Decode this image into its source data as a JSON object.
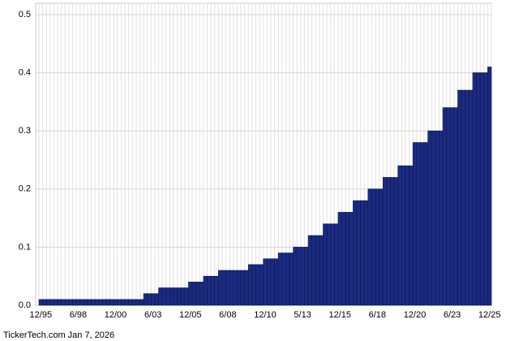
{
  "chart_data": {
    "type": "bar",
    "categories": [
      "12/95",
      null,
      null,
      null,
      null,
      null,
      null,
      null,
      null,
      null,
      "6/98",
      null,
      null,
      null,
      null,
      null,
      null,
      null,
      null,
      null,
      "12/00",
      null,
      null,
      null,
      null,
      null,
      null,
      null,
      null,
      null,
      "6/03",
      null,
      null,
      null,
      null,
      null,
      null,
      null,
      null,
      null,
      "12/05",
      null,
      null,
      null,
      null,
      null,
      null,
      null,
      null,
      null,
      "6/08",
      null,
      null,
      null,
      null,
      null,
      null,
      null,
      null,
      null,
      "12/10",
      null,
      null,
      null,
      null,
      null,
      null,
      null,
      null,
      null,
      "5/13",
      null,
      null,
      null,
      null,
      null,
      null,
      null,
      null,
      null,
      "12/15",
      null,
      null,
      null,
      null,
      null,
      null,
      null,
      null,
      null,
      "6/18",
      null,
      null,
      null,
      null,
      null,
      null,
      null,
      null,
      null,
      "12/20",
      null,
      null,
      null,
      null,
      null,
      null,
      null,
      null,
      null,
      "6/23",
      null,
      null,
      null,
      null,
      null,
      null,
      null,
      null,
      null,
      "12/25"
    ],
    "values": [
      0.01,
      0.01,
      0.01,
      0.01,
      0.01,
      0.01,
      0.01,
      0.01,
      0.01,
      0.01,
      0.01,
      0.01,
      0.01,
      0.01,
      0.01,
      0.01,
      0.01,
      0.01,
      0.01,
      0.01,
      0.01,
      0.01,
      0.01,
      0.01,
      0.01,
      0.01,
      0.01,
      0.01,
      0.02,
      0.02,
      0.02,
      0.02,
      0.03,
      0.03,
      0.03,
      0.03,
      0.03,
      0.03,
      0.03,
      0.03,
      0.04,
      0.04,
      0.04,
      0.04,
      0.05,
      0.05,
      0.05,
      0.05,
      0.06,
      0.06,
      0.06,
      0.06,
      0.06,
      0.06,
      0.06,
      0.06,
      0.07,
      0.07,
      0.07,
      0.07,
      0.08,
      0.08,
      0.08,
      0.08,
      0.09,
      0.09,
      0.09,
      0.09,
      0.1,
      0.1,
      0.1,
      0.1,
      0.12,
      0.12,
      0.12,
      0.12,
      0.14,
      0.14,
      0.14,
      0.14,
      0.16,
      0.16,
      0.16,
      0.16,
      0.18,
      0.18,
      0.18,
      0.18,
      0.2,
      0.2,
      0.2,
      0.2,
      0.22,
      0.22,
      0.22,
      0.22,
      0.24,
      0.24,
      0.24,
      0.24,
      0.28,
      0.28,
      0.28,
      0.28,
      0.3,
      0.3,
      0.3,
      0.3,
      0.34,
      0.34,
      0.34,
      0.34,
      0.37,
      0.37,
      0.37,
      0.37,
      0.4,
      0.4,
      0.4,
      0.4,
      0.41
    ],
    "color": "#1c2b80",
    "ylim": [
      0,
      0.5
    ],
    "yticks": [
      {
        "value": 0,
        "label": "0.0"
      },
      0.1,
      0.2,
      0.3,
      0.4,
      0.5
    ],
    "grid": true,
    "footer": "TickerTech.com  Jan 7, 2026"
  }
}
